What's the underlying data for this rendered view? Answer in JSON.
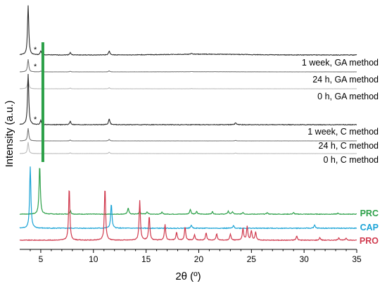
{
  "chart_data": {
    "type": "line",
    "xlabel": "2θ (º)",
    "ylabel": "Intensity (a.u.)",
    "xlim": [
      3,
      35
    ],
    "xticks": [
      "5",
      "10",
      "15",
      "20",
      "25",
      "30",
      "35"
    ],
    "grid": false,
    "series": [
      {
        "name": "1 week, GA method",
        "color": "#2b2b2b",
        "type": "sample",
        "star": "*",
        "halo": 0.25,
        "peaks": [
          [
            3.8,
            1.0
          ],
          [
            5.0,
            0.08
          ],
          [
            7.8,
            0.05
          ],
          [
            11.5,
            0.08
          ],
          [
            19.3,
            0.02
          ]
        ]
      },
      {
        "name": "24 h, GA method",
        "color": "#777777",
        "type": "sample",
        "star": "*",
        "halo": 0.22,
        "peaks": [
          [
            3.8,
            1.0
          ],
          [
            5.0,
            0.06
          ],
          [
            7.8,
            0.05
          ],
          [
            11.5,
            0.08
          ],
          [
            19.3,
            0.02
          ]
        ]
      },
      {
        "name": "0 h, GA method",
        "color": "#bbbbbb",
        "type": "sample",
        "star": "",
        "halo": 0.0,
        "peaks": [
          [
            3.8,
            0.85
          ],
          [
            7.8,
            0.05
          ],
          [
            11.5,
            0.08
          ],
          [
            19.3,
            0.02
          ]
        ]
      },
      {
        "name": "1 week, C method",
        "color": "#2b2b2b",
        "type": "sample",
        "star": "*",
        "halo": 0.0,
        "peaks": [
          [
            3.8,
            1.0
          ],
          [
            5.0,
            0.08
          ],
          [
            7.8,
            0.07
          ],
          [
            11.5,
            0.12
          ],
          [
            23.5,
            0.04
          ]
        ]
      },
      {
        "name": "24 h, C method",
        "color": "#777777",
        "type": "sample",
        "star": "",
        "halo": 0.0,
        "peaks": [
          [
            3.8,
            1.0
          ],
          [
            7.8,
            0.06
          ],
          [
            11.5,
            0.11
          ],
          [
            23.5,
            0.04
          ]
        ]
      },
      {
        "name": "0 h, C method",
        "color": "#bbbbbb",
        "type": "sample",
        "star": "",
        "halo": 0.0,
        "peaks": [
          [
            3.8,
            0.9
          ],
          [
            7.8,
            0.06
          ],
          [
            11.5,
            0.11
          ],
          [
            23.5,
            0.04
          ]
        ]
      },
      {
        "name": "PRC",
        "color": "#2ca048",
        "type": "reference",
        "peaks": [
          [
            4.9,
            1.0
          ],
          [
            7.8,
            0.08
          ],
          [
            13.3,
            0.13
          ],
          [
            14.4,
            0.06
          ],
          [
            15.1,
            0.05
          ],
          [
            16.5,
            0.04
          ],
          [
            19.2,
            0.1
          ],
          [
            19.8,
            0.05
          ],
          [
            21.3,
            0.05
          ],
          [
            22.8,
            0.06
          ],
          [
            23.2,
            0.05
          ],
          [
            24.2,
            0.04
          ],
          [
            26.5,
            0.03
          ],
          [
            29.0,
            0.03
          ],
          [
            33.2,
            0.02
          ]
        ]
      },
      {
        "name": "CAP",
        "color": "#1aa3d6",
        "type": "reference",
        "peaks": [
          [
            4.0,
            1.0
          ],
          [
            11.7,
            0.4
          ],
          [
            19.3,
            0.05
          ],
          [
            23.3,
            0.04
          ],
          [
            31.0,
            0.05
          ]
        ]
      },
      {
        "name": "PRO",
        "color": "#d03a4e",
        "type": "reference",
        "peaks": [
          [
            7.7,
            1.0
          ],
          [
            11.1,
            1.0
          ],
          [
            14.4,
            0.75
          ],
          [
            15.3,
            0.45
          ],
          [
            16.8,
            0.3
          ],
          [
            17.9,
            0.15
          ],
          [
            18.7,
            0.25
          ],
          [
            19.6,
            0.1
          ],
          [
            20.7,
            0.14
          ],
          [
            21.7,
            0.12
          ],
          [
            23.0,
            0.12
          ],
          [
            24.2,
            0.22
          ],
          [
            24.6,
            0.26
          ],
          [
            25.0,
            0.18
          ],
          [
            25.4,
            0.15
          ],
          [
            29.3,
            0.08
          ],
          [
            31.5,
            0.05
          ],
          [
            33.3,
            0.05
          ],
          [
            34.0,
            0.04
          ]
        ]
      }
    ],
    "marker_band": {
      "x": 5.0,
      "color": "#2ca048"
    }
  }
}
